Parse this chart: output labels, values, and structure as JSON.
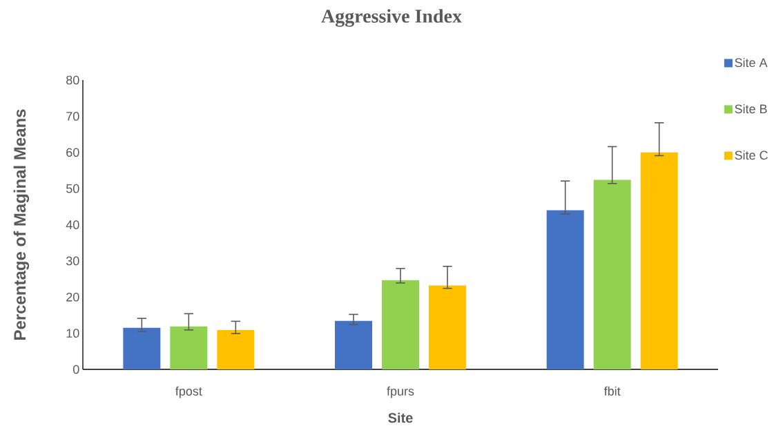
{
  "chart_data": {
    "type": "bar",
    "title": "Aggressive Index",
    "xlabel": "Site",
    "ylabel": "Percentage of Maginal Means",
    "categories": [
      "fpost",
      "fpurs",
      "fbit"
    ],
    "series": [
      {
        "name": "Site A",
        "color": "#4472c4",
        "values": [
          11.5,
          13.4,
          44.0
        ],
        "errors": [
          [
            10.5,
            14.1
          ],
          [
            12.4,
            15.2
          ],
          [
            43.0,
            52.1
          ]
        ]
      },
      {
        "name": "Site B",
        "color": "#92d050",
        "values": [
          11.9,
          24.7,
          52.4
        ],
        "errors": [
          [
            10.9,
            15.4
          ],
          [
            23.9,
            27.9
          ],
          [
            51.4,
            61.6
          ]
        ]
      },
      {
        "name": "Site C",
        "color": "#ffc000",
        "values": [
          10.9,
          23.2,
          60.0
        ],
        "errors": [
          [
            9.9,
            13.3
          ],
          [
            22.4,
            28.5
          ],
          [
            59.1,
            68.2
          ]
        ]
      }
    ],
    "ylim": [
      0,
      80
    ],
    "yticks": [
      0,
      10,
      20,
      30,
      40,
      50,
      60,
      70,
      80
    ],
    "grid": false,
    "legend": "right"
  }
}
